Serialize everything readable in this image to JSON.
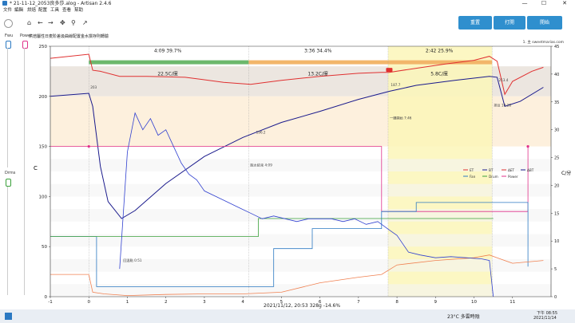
{
  "window": {
    "title": "* 21-11-12_2053良多莎.alog - Artisan 2.4.6",
    "minimize": "—",
    "maximize": "☐",
    "close": "✕"
  },
  "menu": [
    "文件",
    "編輯",
    "烘焙",
    "配置",
    "工具",
    "查看",
    "幫助"
  ],
  "left_panel": {
    "top_label_a": "Fwu",
    "top_label_b": "Power",
    "mid_label": "Drms"
  },
  "toolbar": {
    "icons": [
      "home-icon",
      "back-icon",
      "forward-icon",
      "move-icon",
      "zoom-icon",
      "chart-icon"
    ]
  },
  "buttons": {
    "reset": "重置",
    "on": "打開",
    "start": "開始"
  },
  "cmd_line": "烘焙屬性日麦阶差圾曲線配置金水撰存則轉驗",
  "right_note": "1. 主 sweetmarias.com",
  "phases": {
    "dry": {
      "time": "4:09",
      "pct": "39.7%",
      "label": "22.5C/度"
    },
    "maillard": {
      "time": "3:36",
      "pct": "34.4%",
      "label": "13.2C/度"
    },
    "dev": {
      "time": "2:42",
      "pct": "25.9%",
      "label": "5.8C/度"
    }
  },
  "footer": {
    "date": "2021/11/12, 20:53",
    "weight": "328g",
    "loss": "-14.6%"
  },
  "axes": {
    "ylabel_left": "C",
    "ylabel_right": "C/分"
  },
  "annotations": [
    {
      "text": "203",
      "t": 0.0,
      "v": 208
    },
    {
      "text": "回溫點 0:51",
      "t": 0.85,
      "v": 35
    },
    {
      "text": "脫水結束 4:09",
      "t": 4.15,
      "v": 130
    },
    {
      "text": "一爆開始 7:46",
      "t": 7.77,
      "v": 177
    },
    {
      "text": "排豆 10:28",
      "t": 10.47,
      "v": 190
    },
    {
      "text": "196.2",
      "t": 4.3,
      "v": 163
    },
    {
      "text": "187.7",
      "t": 7.8,
      "v": 210
    },
    {
      "text": "213.4",
      "t": 10.6,
      "v": 215
    }
  ],
  "legend": [
    {
      "name": "ET",
      "color": "#e03030"
    },
    {
      "name": "BT",
      "color": "#1a1a8c"
    },
    {
      "name": "ΔET",
      "color": "#e03030"
    },
    {
      "name": "ΔBT",
      "color": "#1a1a8c"
    },
    {
      "name": "Fan",
      "color": "#2b79c2"
    },
    {
      "name": "Drum",
      "color": "#3aa03a"
    },
    {
      "name": "Power",
      "color": "#e0308a"
    }
  ],
  "taskbar": {
    "weather": "23°C 多雲時陰",
    "time": "下午 08:55",
    "date": "2021/11/14"
  },
  "chart_data": {
    "type": "line",
    "xlabel": "",
    "ylabel": "C",
    "xlim": [
      -1,
      12
    ],
    "ylim": [
      0,
      250
    ],
    "y2lim": [
      0,
      45
    ],
    "x_ticks": [
      -1,
      0,
      1,
      2,
      3,
      4,
      5,
      6,
      7,
      8,
      9,
      10,
      11
    ],
    "y_ticks": [
      0,
      50,
      100,
      150,
      200,
      250
    ],
    "y2_ticks": [
      0,
      5,
      10,
      15,
      20,
      25,
      30,
      35,
      40,
      45
    ],
    "series": [
      {
        "name": "ET",
        "color": "#e03030",
        "axis": "left",
        "x": [
          -1,
          0,
          0.1,
          0.3,
          0.8,
          1.5,
          2.5,
          3.5,
          4.2,
          5,
          6,
          7,
          7.6,
          7.8,
          8.5,
          9.2,
          10.0,
          10.4,
          10.6,
          10.8,
          11.0,
          11.5,
          11.8
        ],
        "y": [
          238,
          242,
          226,
          225,
          220,
          220,
          219,
          214,
          212,
          216,
          220,
          223,
          224,
          224,
          228,
          232,
          236,
          240,
          235,
          202,
          215,
          225,
          229
        ]
      },
      {
        "name": "BT",
        "color": "#1a1a8c",
        "axis": "left",
        "x": [
          -1,
          0,
          0.1,
          0.3,
          0.5,
          0.85,
          1.2,
          2,
          3,
          4,
          5,
          6,
          7,
          7.8,
          8.5,
          9.5,
          10.4,
          10.6,
          10.8,
          11.2,
          11.8
        ],
        "y": [
          200,
          203,
          190,
          130,
          95,
          78,
          86,
          113,
          140,
          159,
          174,
          185,
          197,
          205,
          211,
          216,
          220,
          219,
          190,
          195,
          209
        ]
      },
      {
        "name": "Power",
        "color": "#e0308a",
        "axis": "left",
        "x": [
          -1,
          0,
          0,
          7.6,
          7.6,
          11.4,
          11.4
        ],
        "y": [
          150,
          150,
          150,
          150,
          85,
          85,
          150
        ]
      },
      {
        "name": "Fan",
        "color": "#2b79c2",
        "axis": "left",
        "x": [
          -1,
          0.1,
          0.1,
          0.2,
          0.2,
          4.8,
          4.8,
          5.8,
          5.8,
          7.6,
          7.6,
          8.5,
          8.5,
          11.4,
          11.4
        ],
        "y": [
          60,
          60,
          60,
          60,
          10,
          10,
          48,
          48,
          68,
          68,
          85,
          85,
          94,
          94,
          30
        ]
      },
      {
        "name": "Drum",
        "color": "#3aa03a",
        "axis": "left",
        "x": [
          -1,
          0.1,
          4.4,
          4.4,
          10.5
        ],
        "y": [
          60,
          60,
          60,
          78,
          78
        ]
      },
      {
        "name": "ΔET",
        "color": "#f08050",
        "axis": "right",
        "x": [
          -1,
          0,
          0.1,
          0.4,
          1,
          2,
          3,
          4,
          5,
          6,
          7,
          7.6,
          8,
          9,
          10,
          10.4,
          10.6,
          11,
          11.8
        ],
        "y": [
          4,
          4,
          0.8,
          0.5,
          0.2,
          0.4,
          0.5,
          0.5,
          0.8,
          2.5,
          3.5,
          4,
          5.7,
          6.5,
          7,
          7.5,
          7,
          6,
          6.5
        ]
      },
      {
        "name": "ΔBT",
        "color": "#3040d0",
        "axis": "right",
        "x": [
          0.8,
          1.0,
          1.2,
          1.4,
          1.6,
          1.8,
          2.0,
          2.2,
          2.4,
          2.6,
          2.8,
          3.0,
          3.3,
          3.6,
          3.9,
          4.2,
          4.5,
          4.8,
          5.1,
          5.4,
          5.7,
          6.0,
          6.3,
          6.6,
          6.9,
          7.2,
          7.5,
          7.8,
          8.0,
          8.3,
          8.6,
          9.0,
          9.4,
          9.8,
          10.2,
          10.4,
          10.5
        ],
        "y": [
          5,
          26,
          33,
          30,
          32,
          29,
          30,
          27,
          24,
          22,
          21,
          19,
          18,
          17,
          16,
          15,
          14,
          14.5,
          14,
          13.5,
          14,
          14,
          14,
          13.5,
          14,
          13,
          13.5,
          12,
          11,
          8,
          7.5,
          7,
          7.2,
          7.0,
          6.8,
          6.5,
          0
        ]
      }
    ]
  }
}
